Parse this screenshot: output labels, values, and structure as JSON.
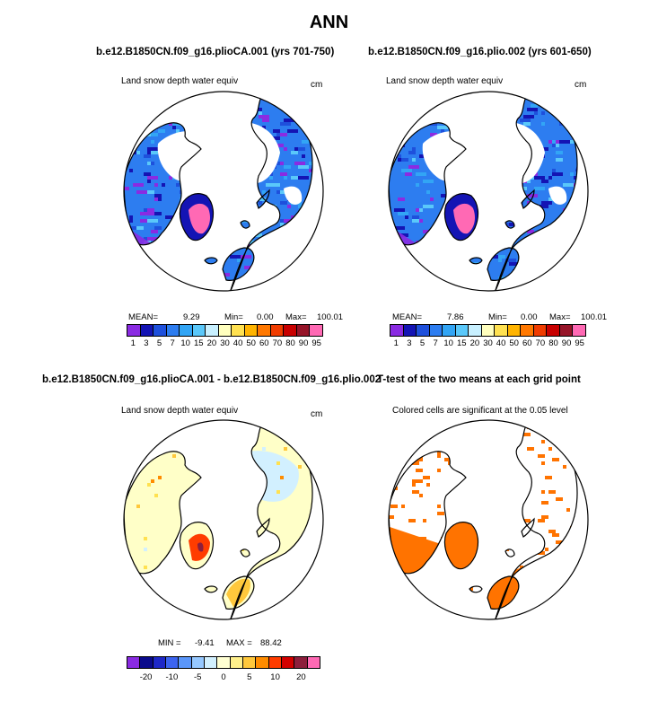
{
  "figure": {
    "title": "ANN",
    "title_bottom_left": "b.e12.B1850CN.f09_g16.plioCA.001 - b.e12.B1850CN.f09_g16.plio.002",
    "title_bottom_right": "T-test of the two means at each grid point"
  },
  "colors": {
    "abs_scale": [
      "#8a2be2",
      "#1414b4",
      "#1e50dc",
      "#2d7df0",
      "#32a5f5",
      "#5ac8fa",
      "#c8f0ff",
      "#ffffbe",
      "#ffe150",
      "#ffb400",
      "#ff7800",
      "#f03c00",
      "#c80000",
      "#961428",
      "#ff69b4"
    ],
    "diff_scale": [
      "#8a2be2",
      "#0a0a8c",
      "#1e28c8",
      "#3c64f0",
      "#5a96fa",
      "#96c8ff",
      "#d2f0ff",
      "#ffffd2",
      "#fff08c",
      "#ffc83c",
      "#ff8c00",
      "#ff3c00",
      "#d20000",
      "#8c1e3c",
      "#ff69b4"
    ],
    "significant": "#ff7300"
  },
  "panels": {
    "tl": {
      "title": "b.e12.B1850CN.f09_g16.plioCA.001 (yrs 701-750)",
      "field": "Land snow depth water equiv",
      "units": "cm",
      "mean_label": "MEAN=",
      "mean": "9.29",
      "min_label": "Min=",
      "min": "0.00",
      "max_label": "Max=",
      "max": "100.01"
    },
    "tr": {
      "title": "b.e12.B1850CN.f09_g16.plio.002 (yrs 601-650)",
      "field": "Land snow depth water equiv",
      "units": "cm",
      "mean_label": "MEAN=",
      "mean": "7.86",
      "min_label": "Min=",
      "min": "0.00",
      "max_label": "Max=",
      "max": "100.01"
    },
    "bl": {
      "field": "Land snow depth water equiv",
      "units": "cm",
      "min_label": "MIN =",
      "min": "-9.41",
      "max_label": "MAX =",
      "max": "88.42"
    },
    "br": {
      "field": "Colored cells are significant at the 0.05 level"
    }
  },
  "chart_data": [
    {
      "type": "heatmap",
      "title": "b.e12.B1850CN.f09_g16.plioCA.001 (yrs 701-750)",
      "variable": "Land snow depth water equiv",
      "units": "cm",
      "projection": "north polar stereographic",
      "levels": [
        1,
        3,
        5,
        7,
        10,
        15,
        20,
        30,
        40,
        50,
        60,
        70,
        80,
        90,
        95
      ],
      "tick_labels": [
        "1",
        "3",
        "5",
        "7",
        "10",
        "15",
        "20",
        "30",
        "40",
        "50",
        "60",
        "70",
        "80",
        "90",
        "95"
      ],
      "mean": 9.29,
      "min": 0.0,
      "max": 100.01
    },
    {
      "type": "heatmap",
      "title": "b.e12.B1850CN.f09_g16.plio.002 (yrs 601-650)",
      "variable": "Land snow depth water equiv",
      "units": "cm",
      "projection": "north polar stereographic",
      "levels": [
        1,
        3,
        5,
        7,
        10,
        15,
        20,
        30,
        40,
        50,
        60,
        70,
        80,
        90,
        95
      ],
      "tick_labels": [
        "1",
        "3",
        "5",
        "7",
        "10",
        "15",
        "20",
        "30",
        "40",
        "50",
        "60",
        "70",
        "80",
        "90",
        "95"
      ],
      "mean": 7.86,
      "min": 0.0,
      "max": 100.01
    },
    {
      "type": "heatmap",
      "title": "b.e12.B1850CN.f09_g16.plioCA.001 - b.e12.B1850CN.f09_g16.plio.002",
      "variable": "Land snow depth water equiv",
      "units": "cm",
      "projection": "north polar stereographic",
      "tick_labels": [
        "-20",
        "-10",
        "-5",
        "0",
        "5",
        "10",
        "20"
      ],
      "min": -9.41,
      "max": 88.42
    },
    {
      "type": "heatmap",
      "title": "T-test of the two means at each grid point",
      "note": "Colored cells are significant at the 0.05 level",
      "projection": "north polar stereographic",
      "significance_level": 0.05
    }
  ]
}
